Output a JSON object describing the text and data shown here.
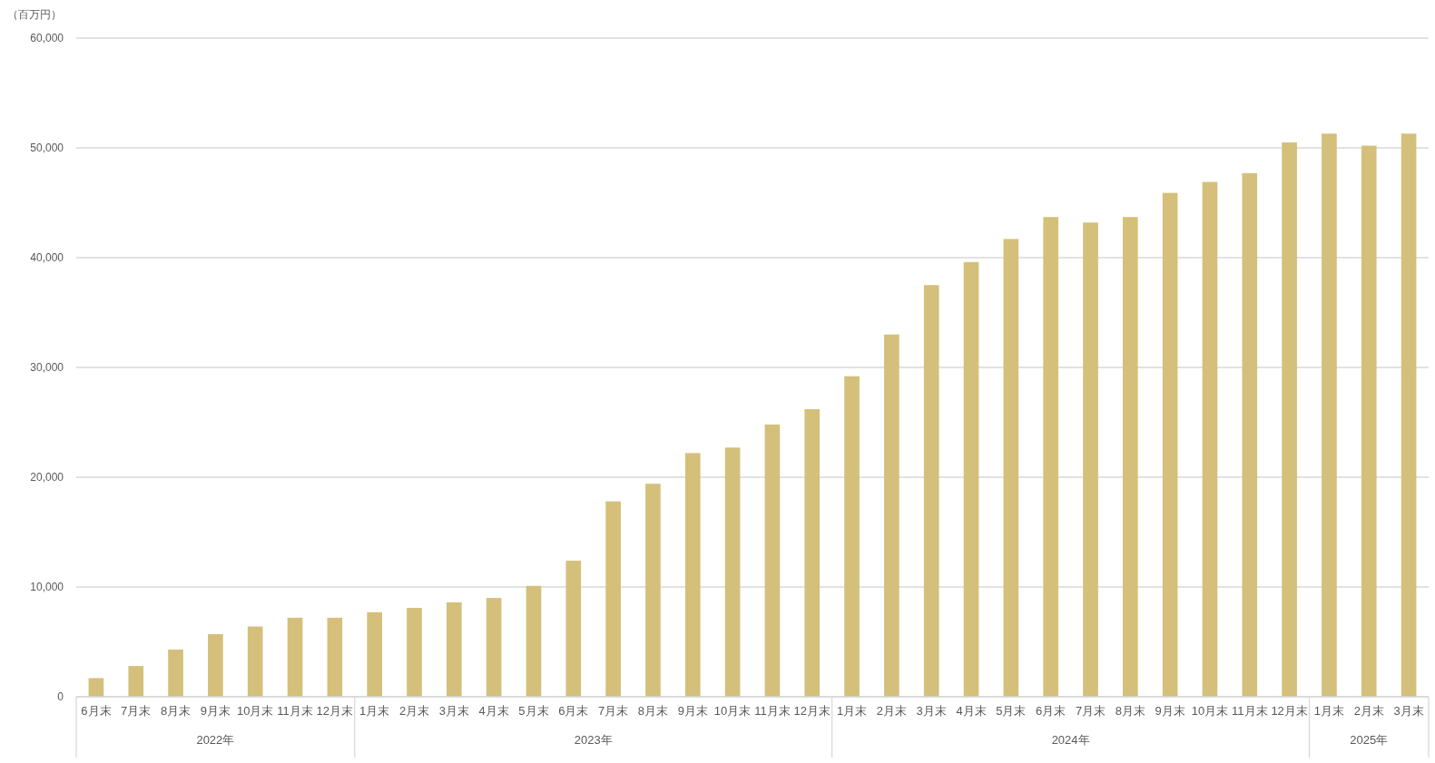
{
  "chart_data": {
    "type": "bar",
    "ylabel": "（百万円）",
    "categories": [
      "6月末",
      "7月末",
      "8月末",
      "9月末",
      "10月末",
      "11月末",
      "12月末",
      "1月末",
      "2月末",
      "3月末",
      "4月末",
      "5月末",
      "6月末",
      "7月末",
      "8月末",
      "9月末",
      "10月末",
      "11月末",
      "12月末",
      "1月末",
      "2月末",
      "3月末",
      "4月末",
      "5月末",
      "6月末",
      "7月末",
      "8月末",
      "9月末",
      "10月末",
      "11月末",
      "12月末",
      "1月末",
      "2月末",
      "3月末"
    ],
    "annotations": [
      "2022年",
      "2023年",
      "2024年",
      "2025年"
    ],
    "values": [
      1700,
      2800,
      4300,
      5700,
      6400,
      7200,
      7200,
      7700,
      8100,
      8600,
      9000,
      10100,
      12400,
      17800,
      19400,
      22200,
      22700,
      24800,
      26200,
      29200,
      33000,
      37500,
      39600,
      41700,
      43700,
      43200,
      43700,
      45900,
      46900,
      47700,
      50500,
      51300,
      50200,
      51300
    ],
    "color": "#d4c07a",
    "ylim": [
      0,
      60000
    ],
    "yticks": [
      {
        "value": 0,
        "label": "0"
      },
      {
        "value": 10000,
        "label": "10,000"
      },
      {
        "value": 20000,
        "label": "20,000"
      },
      {
        "value": 30000,
        "label": "30,000"
      },
      {
        "value": 40000,
        "label": "40,000"
      },
      {
        "value": 50000,
        "label": "50,000"
      },
      {
        "value": 60000,
        "label": "60,000"
      }
    ],
    "grid": "y"
  }
}
